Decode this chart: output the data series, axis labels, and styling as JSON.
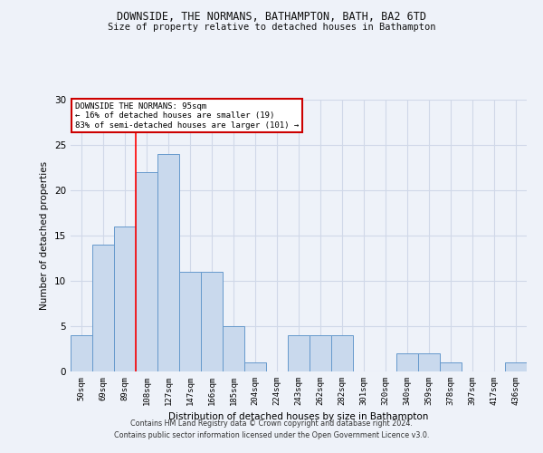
{
  "title1": "DOWNSIDE, THE NORMANS, BATHAMPTON, BATH, BA2 6TD",
  "title2": "Size of property relative to detached houses in Bathampton",
  "xlabel": "Distribution of detached houses by size in Bathampton",
  "ylabel": "Number of detached properties",
  "categories": [
    "50sqm",
    "69sqm",
    "89sqm",
    "108sqm",
    "127sqm",
    "147sqm",
    "166sqm",
    "185sqm",
    "204sqm",
    "224sqm",
    "243sqm",
    "262sqm",
    "282sqm",
    "301sqm",
    "320sqm",
    "340sqm",
    "359sqm",
    "378sqm",
    "397sqm",
    "417sqm",
    "436sqm"
  ],
  "values": [
    4,
    14,
    16,
    22,
    24,
    11,
    11,
    5,
    1,
    0,
    4,
    4,
    4,
    0,
    0,
    2,
    2,
    1,
    0,
    0,
    1
  ],
  "bar_color": "#c9d9ed",
  "bar_edge_color": "#6699cc",
  "ylim": [
    0,
    30
  ],
  "yticks": [
    0,
    5,
    10,
    15,
    20,
    25,
    30
  ],
  "grid_color": "#d0d8e8",
  "red_line_x": 2.5,
  "annotation_line1": "DOWNSIDE THE NORMANS: 95sqm",
  "annotation_line2": "← 16% of detached houses are smaller (19)",
  "annotation_line3": "83% of semi-detached houses are larger (101) →",
  "annotation_box_color": "#ffffff",
  "annotation_box_edge": "#cc0000",
  "footer1": "Contains HM Land Registry data © Crown copyright and database right 2024.",
  "footer2": "Contains public sector information licensed under the Open Government Licence v3.0.",
  "bg_color": "#eef2f9"
}
